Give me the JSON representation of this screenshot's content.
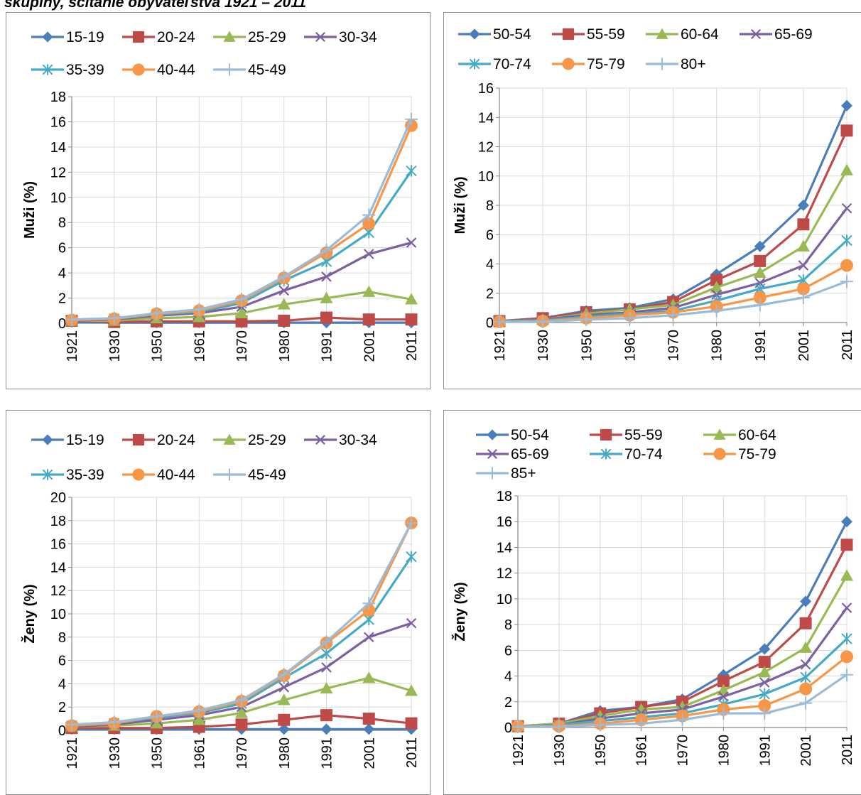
{
  "page_title": "skupiny, sčítanie obyvateľstva 1921 – 2011",
  "chart_data": [
    {
      "type": "line",
      "title": "",
      "xlabel": "",
      "ylabel": "Muži (%)",
      "categories": [
        "1921",
        "1930",
        "1950",
        "1961",
        "1970",
        "1980",
        "1991",
        "2001",
        "2011"
      ],
      "ylim": [
        0,
        18
      ],
      "yticks": [
        "0",
        "2",
        "4",
        "6",
        "8",
        "10",
        "12",
        "14",
        "16",
        "18"
      ],
      "grid": true,
      "legend_position": "top",
      "series": [
        {
          "name": "15-19",
          "color": "#4a7ebb",
          "marker": "diamond",
          "values": [
            0.1,
            0.05,
            0.05,
            0.05,
            0.05,
            0.05,
            0.05,
            0.05,
            0.05
          ]
        },
        {
          "name": "20-24",
          "color": "#be4b48",
          "marker": "square",
          "values": [
            0.2,
            0.1,
            0.15,
            0.15,
            0.15,
            0.2,
            0.45,
            0.3,
            0.3
          ]
        },
        {
          "name": "25-29",
          "color": "#98b954",
          "marker": "triangle",
          "values": [
            0.2,
            0.2,
            0.4,
            0.5,
            0.8,
            1.5,
            2.0,
            2.5,
            1.9
          ]
        },
        {
          "name": "30-34",
          "color": "#7d60a0",
          "marker": "x",
          "values": [
            0.2,
            0.3,
            0.6,
            0.8,
            1.3,
            2.6,
            3.7,
            5.5,
            6.4
          ]
        },
        {
          "name": "35-39",
          "color": "#46aac5",
          "marker": "asterisk",
          "values": [
            0.25,
            0.35,
            0.7,
            0.9,
            1.6,
            3.4,
            4.9,
            7.2,
            12.1
          ]
        },
        {
          "name": "40-44",
          "color": "#f79646",
          "marker": "circle",
          "values": [
            0.25,
            0.35,
            0.75,
            1.0,
            1.8,
            3.6,
            5.6,
            7.9,
            15.7
          ]
        },
        {
          "name": "45-49",
          "color": "#9bbbd9",
          "marker": "plus",
          "values": [
            0.3,
            0.4,
            0.8,
            1.1,
            1.9,
            3.7,
            5.8,
            8.6,
            16.2
          ]
        }
      ]
    },
    {
      "type": "line",
      "title": "",
      "xlabel": "",
      "ylabel": "Muži (%)",
      "categories": [
        "1921",
        "1930",
        "1950",
        "1961",
        "1970",
        "1980",
        "1991",
        "2001",
        "2011"
      ],
      "ylim": [
        0,
        16
      ],
      "yticks": [
        "0",
        "2",
        "4",
        "6",
        "8",
        "10",
        "12",
        "14",
        "16"
      ],
      "grid": true,
      "legend_position": "top",
      "series": [
        {
          "name": "50-54",
          "color": "#4a7ebb",
          "marker": "diamond",
          "values": [
            0.1,
            0.3,
            0.8,
            1.0,
            1.6,
            3.3,
            5.2,
            8.0,
            14.8
          ]
        },
        {
          "name": "55-59",
          "color": "#be4b48",
          "marker": "square",
          "values": [
            0.1,
            0.3,
            0.7,
            0.9,
            1.4,
            2.9,
            4.2,
            6.7,
            13.1
          ]
        },
        {
          "name": "60-64",
          "color": "#98b954",
          "marker": "triangle",
          "values": [
            0.1,
            0.2,
            0.6,
            0.9,
            1.2,
            2.4,
            3.4,
            5.2,
            10.4
          ]
        },
        {
          "name": "65-69",
          "color": "#7d60a0",
          "marker": "x",
          "values": [
            0.1,
            0.2,
            0.5,
            0.7,
            1.0,
            1.9,
            2.7,
            3.9,
            7.8
          ]
        },
        {
          "name": "70-74",
          "color": "#46aac5",
          "marker": "asterisk",
          "values": [
            0.1,
            0.15,
            0.4,
            0.6,
            0.8,
            1.5,
            2.3,
            2.9,
            5.6
          ]
        },
        {
          "name": "75-79",
          "color": "#f79646",
          "marker": "circle",
          "values": [
            0.05,
            0.1,
            0.3,
            0.5,
            0.7,
            1.1,
            1.7,
            2.3,
            3.9
          ]
        },
        {
          "name": "80+",
          "color": "#9bbbd9",
          "marker": "plus",
          "values": [
            0.05,
            0.05,
            0.2,
            0.3,
            0.5,
            0.8,
            1.2,
            1.7,
            2.8
          ]
        }
      ]
    },
    {
      "type": "line",
      "title": "",
      "xlabel": "",
      "ylabel": "Ženy (%)",
      "categories": [
        "1921",
        "1930",
        "1950",
        "1961",
        "1970",
        "1980",
        "1991",
        "2001",
        "2011"
      ],
      "ylim": [
        0,
        20
      ],
      "yticks": [
        "0",
        "2",
        "4",
        "6",
        "8",
        "10",
        "12",
        "14",
        "16",
        "18",
        "20"
      ],
      "grid": true,
      "legend_position": "top",
      "series": [
        {
          "name": "15-19",
          "color": "#4a7ebb",
          "marker": "diamond",
          "values": [
            0.1,
            0.1,
            0.1,
            0.1,
            0.1,
            0.1,
            0.1,
            0.1,
            0.1
          ]
        },
        {
          "name": "20-24",
          "color": "#be4b48",
          "marker": "square",
          "values": [
            0.2,
            0.2,
            0.2,
            0.3,
            0.5,
            0.9,
            1.3,
            1.0,
            0.6
          ]
        },
        {
          "name": "25-29",
          "color": "#98b954",
          "marker": "triangle",
          "values": [
            0.3,
            0.4,
            0.6,
            0.9,
            1.5,
            2.6,
            3.6,
            4.5,
            3.4
          ]
        },
        {
          "name": "30-34",
          "color": "#7d60a0",
          "marker": "x",
          "values": [
            0.3,
            0.5,
            0.9,
            1.3,
            2.0,
            3.7,
            5.4,
            8.0,
            9.2
          ]
        },
        {
          "name": "35-39",
          "color": "#46aac5",
          "marker": "asterisk",
          "values": [
            0.4,
            0.6,
            1.1,
            1.5,
            2.3,
            4.5,
            6.6,
            9.5,
            14.9
          ]
        },
        {
          "name": "40-44",
          "color": "#f79646",
          "marker": "circle",
          "values": [
            0.4,
            0.6,
            1.2,
            1.6,
            2.5,
            4.7,
            7.5,
            10.3,
            17.8
          ]
        },
        {
          "name": "45-49",
          "color": "#9bbbd9",
          "marker": "plus",
          "values": [
            0.5,
            0.7,
            1.2,
            1.7,
            2.6,
            4.8,
            7.6,
            10.9,
            17.8
          ]
        }
      ]
    },
    {
      "type": "line",
      "title": "",
      "xlabel": "",
      "ylabel": "Ženy (%)",
      "categories": [
        "1921",
        "1930",
        "1950",
        "1961",
        "1970",
        "1980",
        "1991",
        "2001",
        "2011"
      ],
      "ylim": [
        0,
        18
      ],
      "yticks": [
        "0",
        "2",
        "4",
        "6",
        "8",
        "10",
        "12",
        "14",
        "16",
        "18"
      ],
      "grid": true,
      "legend_position": "top",
      "series": [
        {
          "name": "50-54",
          "color": "#4a7ebb",
          "marker": "diamond",
          "values": [
            0.1,
            0.3,
            1.3,
            1.6,
            2.2,
            4.1,
            6.1,
            9.8,
            16.0
          ]
        },
        {
          "name": "55-59",
          "color": "#be4b48",
          "marker": "square",
          "values": [
            0.1,
            0.3,
            1.1,
            1.6,
            2.0,
            3.6,
            5.1,
            8.1,
            14.2
          ]
        },
        {
          "name": "60-64",
          "color": "#98b954",
          "marker": "triangle",
          "values": [
            0.1,
            0.3,
            0.9,
            1.4,
            1.6,
            2.9,
            4.3,
            6.2,
            11.8
          ]
        },
        {
          "name": "65-69",
          "color": "#7d60a0",
          "marker": "x",
          "values": [
            0.1,
            0.2,
            0.7,
            1.1,
            1.4,
            2.4,
            3.5,
            4.9,
            9.3
          ]
        },
        {
          "name": "70-74",
          "color": "#46aac5",
          "marker": "asterisk",
          "values": [
            0.1,
            0.2,
            0.5,
            0.8,
            1.1,
            1.8,
            2.6,
            3.9,
            6.9
          ]
        },
        {
          "name": "75-79",
          "color": "#f79646",
          "marker": "circle",
          "values": [
            0.1,
            0.1,
            0.3,
            0.6,
            0.9,
            1.4,
            1.7,
            3.0,
            5.5
          ]
        },
        {
          "name": "85+",
          "color": "#9bbbd9",
          "marker": "plus",
          "values": [
            0.05,
            0.05,
            0.2,
            0.3,
            0.6,
            1.1,
            1.1,
            1.9,
            4.1
          ]
        }
      ]
    }
  ]
}
